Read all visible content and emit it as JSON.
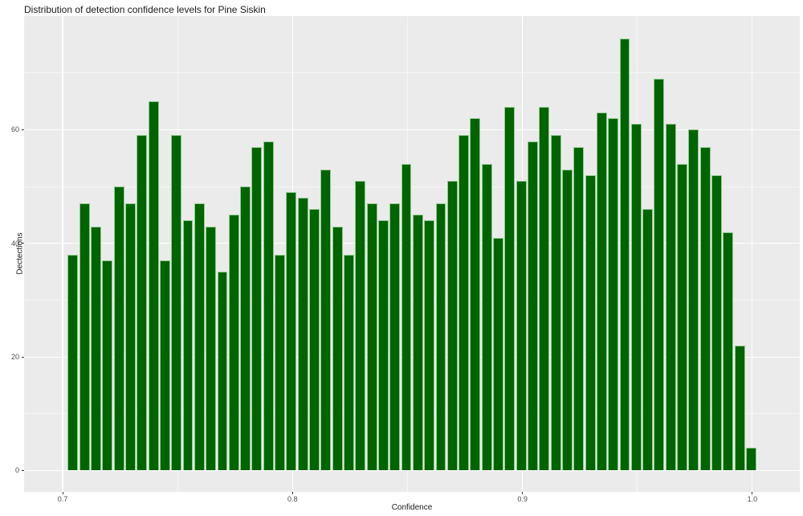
{
  "title": "Distribution of detection confidence levels for Pine Siskin",
  "chart_data": {
    "type": "bar",
    "subtype": "histogram",
    "title": "Distribution of detection confidence levels for Pine Siskin",
    "xlabel": "Confidence",
    "ylabel": "Dectections",
    "bin_start": 0.702,
    "bin_width": 0.005,
    "counts": [
      38,
      47,
      43,
      37,
      50,
      47,
      59,
      65,
      37,
      59,
      44,
      47,
      43,
      35,
      45,
      50,
      57,
      58,
      38,
      49,
      48,
      46,
      53,
      43,
      38,
      51,
      47,
      44,
      47,
      54,
      45,
      44,
      47,
      51,
      59,
      62,
      54,
      41,
      64,
      51,
      58,
      64,
      59,
      53,
      57,
      52,
      63,
      62,
      76,
      61,
      46,
      69,
      61,
      54,
      60,
      57,
      52,
      42,
      22,
      4
    ],
    "x_ticks": [
      0.7,
      0.8,
      0.9,
      1.0
    ],
    "x_tick_labels": [
      "0.7",
      "0.8",
      "0.9",
      "1.0"
    ],
    "x_minor_ticks": [
      0.75,
      0.85,
      0.95
    ],
    "y_ticks": [
      0,
      20,
      40,
      60
    ],
    "y_tick_labels": [
      "0",
      "20",
      "40",
      "60"
    ],
    "y_minor_ticks": [
      10,
      30,
      50,
      70
    ],
    "x_range": [
      0.68323,
      1.02064
    ],
    "y_range": [
      -3.75,
      80
    ],
    "grid": "on",
    "legend_position": "none",
    "colors": {
      "bar_fill": "#006400",
      "bar_border": "#8ec98e",
      "panel_background": "#ebebeb",
      "gridline": "#ffffff",
      "axis_text": "#4d4d4d",
      "tick_mark": "#333333",
      "title_text": "#1a1a1a"
    }
  }
}
